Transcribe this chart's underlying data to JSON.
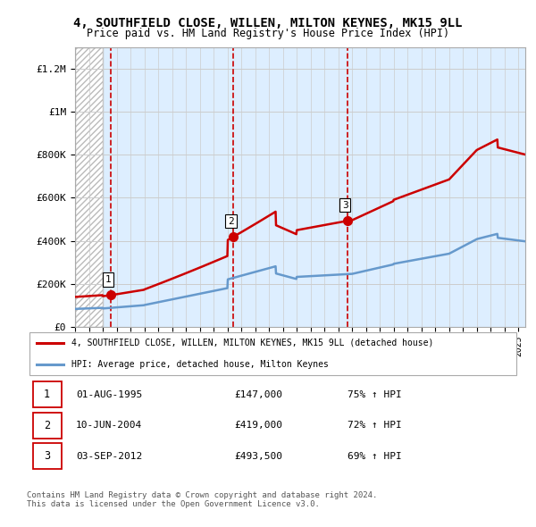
{
  "title_line1": "4, SOUTHFIELD CLOSE, WILLEN, MILTON KEYNES, MK15 9LL",
  "title_line2": "Price paid vs. HM Land Registry's House Price Index (HPI)",
  "ylim": [
    0,
    1300000
  ],
  "yticks": [
    0,
    200000,
    400000,
    600000,
    800000,
    1000000,
    1200000
  ],
  "ytick_labels": [
    "£0",
    "£200K",
    "£400K",
    "£600K",
    "£800K",
    "£1M",
    "£1.2M"
  ],
  "sale_dates": [
    1995.58,
    2004.44,
    2012.67
  ],
  "sale_prices": [
    147000,
    419000,
    493500
  ],
  "sale_labels": [
    "1",
    "2",
    "3"
  ],
  "sale_color": "#cc0000",
  "hpi_color": "#6699cc",
  "legend_entries": [
    "4, SOUTHFIELD CLOSE, WILLEN, MILTON KEYNES, MK15 9LL (detached house)",
    "HPI: Average price, detached house, Milton Keynes"
  ],
  "table_rows": [
    [
      "1",
      "01-AUG-1995",
      "£147,000",
      "75% ↑ HPI"
    ],
    [
      "2",
      "10-JUN-2004",
      "£419,000",
      "72% ↑ HPI"
    ],
    [
      "3",
      "03-SEP-2012",
      "£493,500",
      "69% ↑ HPI"
    ]
  ],
  "footnote": "Contains HM Land Registry data © Crown copyright and database right 2024.\nThis data is licensed under the Open Government Licence v3.0.",
  "grid_color": "#cccccc",
  "plot_bg": "#ddeeff"
}
